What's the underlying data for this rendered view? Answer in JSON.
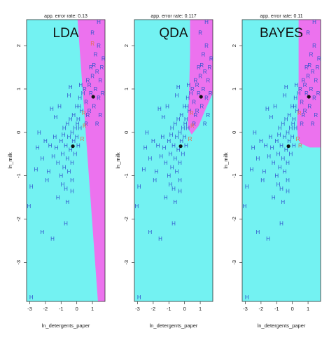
{
  "colors": {
    "region_h": "#73f2f2",
    "region_r": "#ec72ee",
    "label_h": "#3355cc",
    "label_r": "#3355cc",
    "misclassified": "#e0704a",
    "center_dot": "#111111"
  },
  "chart_data": [
    {
      "type": "scatter",
      "panel_label": "LDA",
      "title": "app. error rate: 0.13",
      "xlabel": "ln_detergents_paper",
      "ylabel": "ln_milk",
      "xlim": [
        -3.2,
        1.8
      ],
      "ylim": [
        -3.9,
        2.6
      ],
      "xticks": [
        -3,
        -2,
        -1,
        0,
        1
      ],
      "yticks": [
        -3,
        -2,
        -1,
        0,
        1,
        2
      ],
      "boundary": {
        "kind": "linear",
        "top_x": 0.05,
        "bottom_x": 1.35
      },
      "centers": [
        [
          -0.25,
          -0.32
        ],
        [
          1.05,
          0.82
        ]
      ],
      "points_h": [
        [
          -2.9,
          -1.25
        ],
        [
          -2.5,
          -0.35
        ],
        [
          -2.2,
          -0.6
        ],
        [
          -1.8,
          -0.9
        ],
        [
          -1.5,
          -0.55
        ],
        [
          -1.3,
          -0.35
        ],
        [
          -1.2,
          -0.7
        ],
        [
          -1.0,
          -0.2
        ],
        [
          -1.0,
          -1.0
        ],
        [
          -0.9,
          -0.5
        ],
        [
          -0.8,
          0.1
        ],
        [
          -0.8,
          -0.8
        ],
        [
          -0.7,
          -0.3
        ],
        [
          -0.7,
          -1.3
        ],
        [
          -0.6,
          0.2
        ],
        [
          -0.6,
          -0.6
        ],
        [
          -0.5,
          -0.1
        ],
        [
          -0.5,
          -0.9
        ],
        [
          -0.4,
          0.3
        ],
        [
          -0.4,
          -0.4
        ],
        [
          -0.3,
          0.0
        ],
        [
          -0.3,
          -0.7
        ],
        [
          -0.2,
          0.4
        ],
        [
          -0.2,
          -0.2
        ],
        [
          -0.1,
          0.1
        ],
        [
          -0.1,
          -0.5
        ],
        [
          0.0,
          0.6
        ],
        [
          0.0,
          -0.1
        ],
        [
          0.1,
          0.3
        ],
        [
          0.1,
          -0.3
        ],
        [
          0.2,
          0.8
        ],
        [
          0.2,
          0.1
        ],
        [
          0.3,
          0.5
        ],
        [
          -1.6,
          0.55
        ],
        [
          -1.1,
          0.6
        ],
        [
          -2.2,
          -2.3
        ],
        [
          -1.2,
          -1.5
        ],
        [
          -0.6,
          -1.6
        ],
        [
          -0.9,
          -1.2
        ],
        [
          -0.3,
          -1.1
        ],
        [
          -0.5,
          0.85
        ],
        [
          -2.6,
          -0.85
        ],
        [
          -1.4,
          -0.1
        ],
        [
          0.4,
          0.9
        ],
        [
          -3.05,
          -1.7
        ],
        [
          -2.0,
          -0.2
        ],
        [
          -0.7,
          -2.1
        ],
        [
          0.05,
          0.2
        ],
        [
          0.15,
          0.6
        ],
        [
          -1.35,
          0.35
        ],
        [
          -1.55,
          -2.45
        ],
        [
          -0.4,
          1.05
        ],
        [
          -1.9,
          -1.1
        ],
        [
          -0.3,
          -1.35
        ],
        [
          0.25,
          1.1
        ],
        [
          -2.4,
          0.0
        ],
        [
          -0.85,
          -0.05
        ],
        [
          -1.7,
          -0.3
        ],
        [
          -2.9,
          -3.8
        ],
        [
          1.4,
          2.55
        ]
      ],
      "points_r": [
        [
          0.5,
          1.0
        ],
        [
          0.6,
          0.7
        ],
        [
          0.7,
          1.2
        ],
        [
          0.8,
          0.5
        ],
        [
          0.9,
          0.9
        ],
        [
          1.0,
          1.3
        ],
        [
          1.1,
          0.6
        ],
        [
          1.2,
          1.0
        ],
        [
          1.3,
          1.4
        ],
        [
          1.4,
          0.8
        ],
        [
          1.5,
          1.2
        ],
        [
          1.6,
          1.5
        ],
        [
          1.2,
          1.8
        ],
        [
          1.4,
          2.0
        ],
        [
          0.6,
          0.2
        ],
        [
          0.7,
          0.4
        ],
        [
          0.9,
          1.5
        ],
        [
          1.0,
          2.3
        ],
        [
          1.7,
          1.7
        ],
        [
          1.5,
          0.4
        ],
        [
          1.3,
          0.2
        ],
        [
          0.8,
          1.1
        ],
        [
          1.1,
          1.55
        ],
        [
          1.65,
          0.9
        ]
      ],
      "misclassified": [
        [
          1.0,
          2.05
        ],
        [
          0.45,
          0.45
        ],
        [
          0.35,
          -0.15
        ],
        [
          0.5,
          0.15
        ]
      ]
    },
    {
      "type": "scatter",
      "panel_label": "QDA",
      "title": "app. error rate: 0.117",
      "xlabel": "ln_detergents_paper",
      "ylabel": "ln_milk",
      "xlim": [
        -3.2,
        1.8
      ],
      "ylim": [
        -3.9,
        2.6
      ],
      "xticks": [
        -3,
        -2,
        -1,
        0,
        1
      ],
      "yticks": [
        -3,
        -2,
        -1,
        0,
        1,
        2
      ],
      "boundary": {
        "kind": "curve",
        "pts": [
          [
            0.35,
            2.6
          ],
          [
            0.35,
            1.8
          ],
          [
            0.3,
            1.1
          ],
          [
            0.25,
            0.55
          ],
          [
            0.2,
            0.1
          ],
          [
            0.45,
            -0.05
          ],
          [
            0.9,
            0.15
          ],
          [
            1.3,
            0.5
          ],
          [
            1.8,
            0.9
          ]
        ]
      },
      "centers": [
        [
          -0.25,
          -0.32
        ],
        [
          1.05,
          0.82
        ]
      ],
      "points_h": [
        [
          -2.9,
          -1.25
        ],
        [
          -2.5,
          -0.35
        ],
        [
          -2.2,
          -0.6
        ],
        [
          -1.8,
          -0.9
        ],
        [
          -1.5,
          -0.55
        ],
        [
          -1.3,
          -0.35
        ],
        [
          -1.2,
          -0.7
        ],
        [
          -1.0,
          -0.2
        ],
        [
          -1.0,
          -1.0
        ],
        [
          -0.9,
          -0.5
        ],
        [
          -0.8,
          0.1
        ],
        [
          -0.8,
          -0.8
        ],
        [
          -0.7,
          -0.3
        ],
        [
          -0.7,
          -1.3
        ],
        [
          -0.6,
          0.2
        ],
        [
          -0.6,
          -0.6
        ],
        [
          -0.5,
          -0.1
        ],
        [
          -0.5,
          -0.9
        ],
        [
          -0.4,
          0.3
        ],
        [
          -0.4,
          -0.4
        ],
        [
          -0.3,
          0.0
        ],
        [
          -0.3,
          -0.7
        ],
        [
          -0.2,
          0.4
        ],
        [
          -0.2,
          -0.2
        ],
        [
          -0.1,
          0.1
        ],
        [
          -0.1,
          -0.5
        ],
        [
          0.0,
          0.6
        ],
        [
          0.0,
          -0.1
        ],
        [
          0.1,
          0.3
        ],
        [
          0.1,
          -0.3
        ],
        [
          0.2,
          0.8
        ],
        [
          0.2,
          0.1
        ],
        [
          0.3,
          0.5
        ],
        [
          -1.6,
          0.55
        ],
        [
          -1.1,
          0.6
        ],
        [
          -2.2,
          -2.3
        ],
        [
          -1.2,
          -1.5
        ],
        [
          -0.6,
          -1.6
        ],
        [
          -0.9,
          -1.2
        ],
        [
          -0.3,
          -1.1
        ],
        [
          -0.5,
          0.85
        ],
        [
          -2.6,
          -0.85
        ],
        [
          -1.4,
          -0.1
        ],
        [
          0.4,
          0.9
        ],
        [
          -3.05,
          -1.7
        ],
        [
          -2.0,
          -0.2
        ],
        [
          -0.7,
          -2.1
        ],
        [
          0.05,
          0.2
        ],
        [
          0.15,
          0.6
        ],
        [
          -1.35,
          0.35
        ],
        [
          -1.55,
          -2.45
        ],
        [
          -0.4,
          1.05
        ],
        [
          -1.9,
          -1.1
        ],
        [
          -0.3,
          -1.35
        ],
        [
          0.25,
          1.1
        ],
        [
          -2.4,
          0.0
        ],
        [
          -0.85,
          -0.05
        ],
        [
          -1.7,
          -0.3
        ],
        [
          -2.9,
          -3.8
        ],
        [
          1.4,
          2.55
        ]
      ],
      "points_r": [
        [
          0.5,
          1.0
        ],
        [
          0.6,
          0.7
        ],
        [
          0.7,
          1.2
        ],
        [
          0.8,
          0.5
        ],
        [
          0.9,
          0.9
        ],
        [
          1.0,
          1.3
        ],
        [
          1.1,
          0.6
        ],
        [
          1.2,
          1.0
        ],
        [
          1.3,
          1.4
        ],
        [
          1.4,
          0.8
        ],
        [
          1.5,
          1.2
        ],
        [
          1.6,
          1.5
        ],
        [
          1.2,
          1.8
        ],
        [
          1.4,
          2.0
        ],
        [
          0.6,
          0.2
        ],
        [
          0.7,
          0.4
        ],
        [
          0.9,
          1.5
        ],
        [
          1.0,
          2.3
        ],
        [
          1.7,
          1.7
        ],
        [
          1.5,
          0.4
        ],
        [
          1.3,
          0.2
        ],
        [
          0.8,
          1.1
        ],
        [
          1.1,
          1.55
        ],
        [
          1.65,
          0.9
        ]
      ],
      "misclassified": [
        [
          0.45,
          0.45
        ],
        [
          0.35,
          -0.15
        ],
        [
          0.5,
          0.15
        ]
      ]
    },
    {
      "type": "scatter",
      "panel_label": "BAYES",
      "title": "app. error rate: 0.11",
      "xlabel": "ln_detergents_paper",
      "ylabel": "ln_milk",
      "xlim": [
        -3.2,
        1.8
      ],
      "ylim": [
        -3.9,
        2.6
      ],
      "xticks": [
        -3,
        -2,
        -1,
        0,
        1
      ],
      "yticks": [
        -3,
        -2,
        -1,
        0,
        1,
        2
      ],
      "boundary": {
        "kind": "curve",
        "pts": [
          [
            0.4,
            2.6
          ],
          [
            0.4,
            1.2
          ],
          [
            0.35,
            0.6
          ],
          [
            0.3,
            0.2
          ],
          [
            0.35,
            -0.1
          ],
          [
            0.5,
            -0.25
          ],
          [
            1.1,
            -0.35
          ],
          [
            1.8,
            -0.35
          ]
        ]
      },
      "centers": [
        [
          -0.25,
          -0.32
        ],
        [
          1.05,
          0.82
        ]
      ],
      "points_h": [
        [
          -2.9,
          -1.25
        ],
        [
          -2.5,
          -0.35
        ],
        [
          -2.2,
          -0.6
        ],
        [
          -1.8,
          -0.9
        ],
        [
          -1.5,
          -0.55
        ],
        [
          -1.3,
          -0.35
        ],
        [
          -1.2,
          -0.7
        ],
        [
          -1.0,
          -0.2
        ],
        [
          -1.0,
          -1.0
        ],
        [
          -0.9,
          -0.5
        ],
        [
          -0.8,
          0.1
        ],
        [
          -0.8,
          -0.8
        ],
        [
          -0.7,
          -0.3
        ],
        [
          -0.7,
          -1.3
        ],
        [
          -0.6,
          0.2
        ],
        [
          -0.6,
          -0.6
        ],
        [
          -0.5,
          -0.1
        ],
        [
          -0.5,
          -0.9
        ],
        [
          -0.4,
          0.3
        ],
        [
          -0.4,
          -0.4
        ],
        [
          -0.3,
          0.0
        ],
        [
          -0.3,
          -0.7
        ],
        [
          -0.2,
          0.4
        ],
        [
          -0.2,
          -0.2
        ],
        [
          -0.1,
          0.1
        ],
        [
          -0.1,
          -0.5
        ],
        [
          0.0,
          0.6
        ],
        [
          0.0,
          -0.1
        ],
        [
          0.1,
          0.3
        ],
        [
          0.1,
          -0.3
        ],
        [
          0.2,
          0.8
        ],
        [
          0.2,
          0.1
        ],
        [
          0.3,
          0.5
        ],
        [
          -1.6,
          0.55
        ],
        [
          -1.1,
          0.6
        ],
        [
          -2.2,
          -2.3
        ],
        [
          -1.2,
          -1.5
        ],
        [
          -0.6,
          -1.6
        ],
        [
          -0.9,
          -1.2
        ],
        [
          -0.3,
          -1.1
        ],
        [
          -0.5,
          0.85
        ],
        [
          -2.6,
          -0.85
        ],
        [
          -1.4,
          -0.1
        ],
        [
          0.4,
          0.9
        ],
        [
          -3.05,
          -1.7
        ],
        [
          -2.0,
          -0.2
        ],
        [
          -0.7,
          -2.1
        ],
        [
          0.05,
          0.2
        ],
        [
          0.15,
          0.6
        ],
        [
          -1.35,
          0.35
        ],
        [
          -1.55,
          -2.45
        ],
        [
          -0.4,
          1.05
        ],
        [
          -1.9,
          -1.1
        ],
        [
          -0.3,
          -1.35
        ],
        [
          0.25,
          1.1
        ],
        [
          -2.4,
          0.0
        ],
        [
          -0.85,
          -0.05
        ],
        [
          -1.7,
          -0.3
        ],
        [
          -2.9,
          -3.8
        ],
        [
          1.4,
          2.55
        ]
      ],
      "points_r": [
        [
          0.5,
          1.0
        ],
        [
          0.6,
          0.7
        ],
        [
          0.7,
          1.2
        ],
        [
          0.8,
          0.5
        ],
        [
          0.9,
          0.9
        ],
        [
          1.0,
          1.3
        ],
        [
          1.1,
          0.6
        ],
        [
          1.2,
          1.0
        ],
        [
          1.3,
          1.4
        ],
        [
          1.4,
          0.8
        ],
        [
          1.5,
          1.2
        ],
        [
          1.6,
          1.5
        ],
        [
          1.2,
          1.8
        ],
        [
          1.4,
          2.0
        ],
        [
          0.6,
          0.2
        ],
        [
          0.7,
          0.4
        ],
        [
          0.9,
          1.5
        ],
        [
          1.0,
          2.3
        ],
        [
          1.7,
          1.7
        ],
        [
          1.5,
          0.4
        ],
        [
          1.3,
          0.2
        ],
        [
          0.8,
          1.1
        ],
        [
          1.1,
          1.55
        ],
        [
          1.65,
          0.9
        ]
      ],
      "misclassified": [
        [
          0.45,
          0.45
        ],
        [
          0.35,
          -0.15
        ],
        [
          0.5,
          -0.3
        ]
      ]
    }
  ]
}
